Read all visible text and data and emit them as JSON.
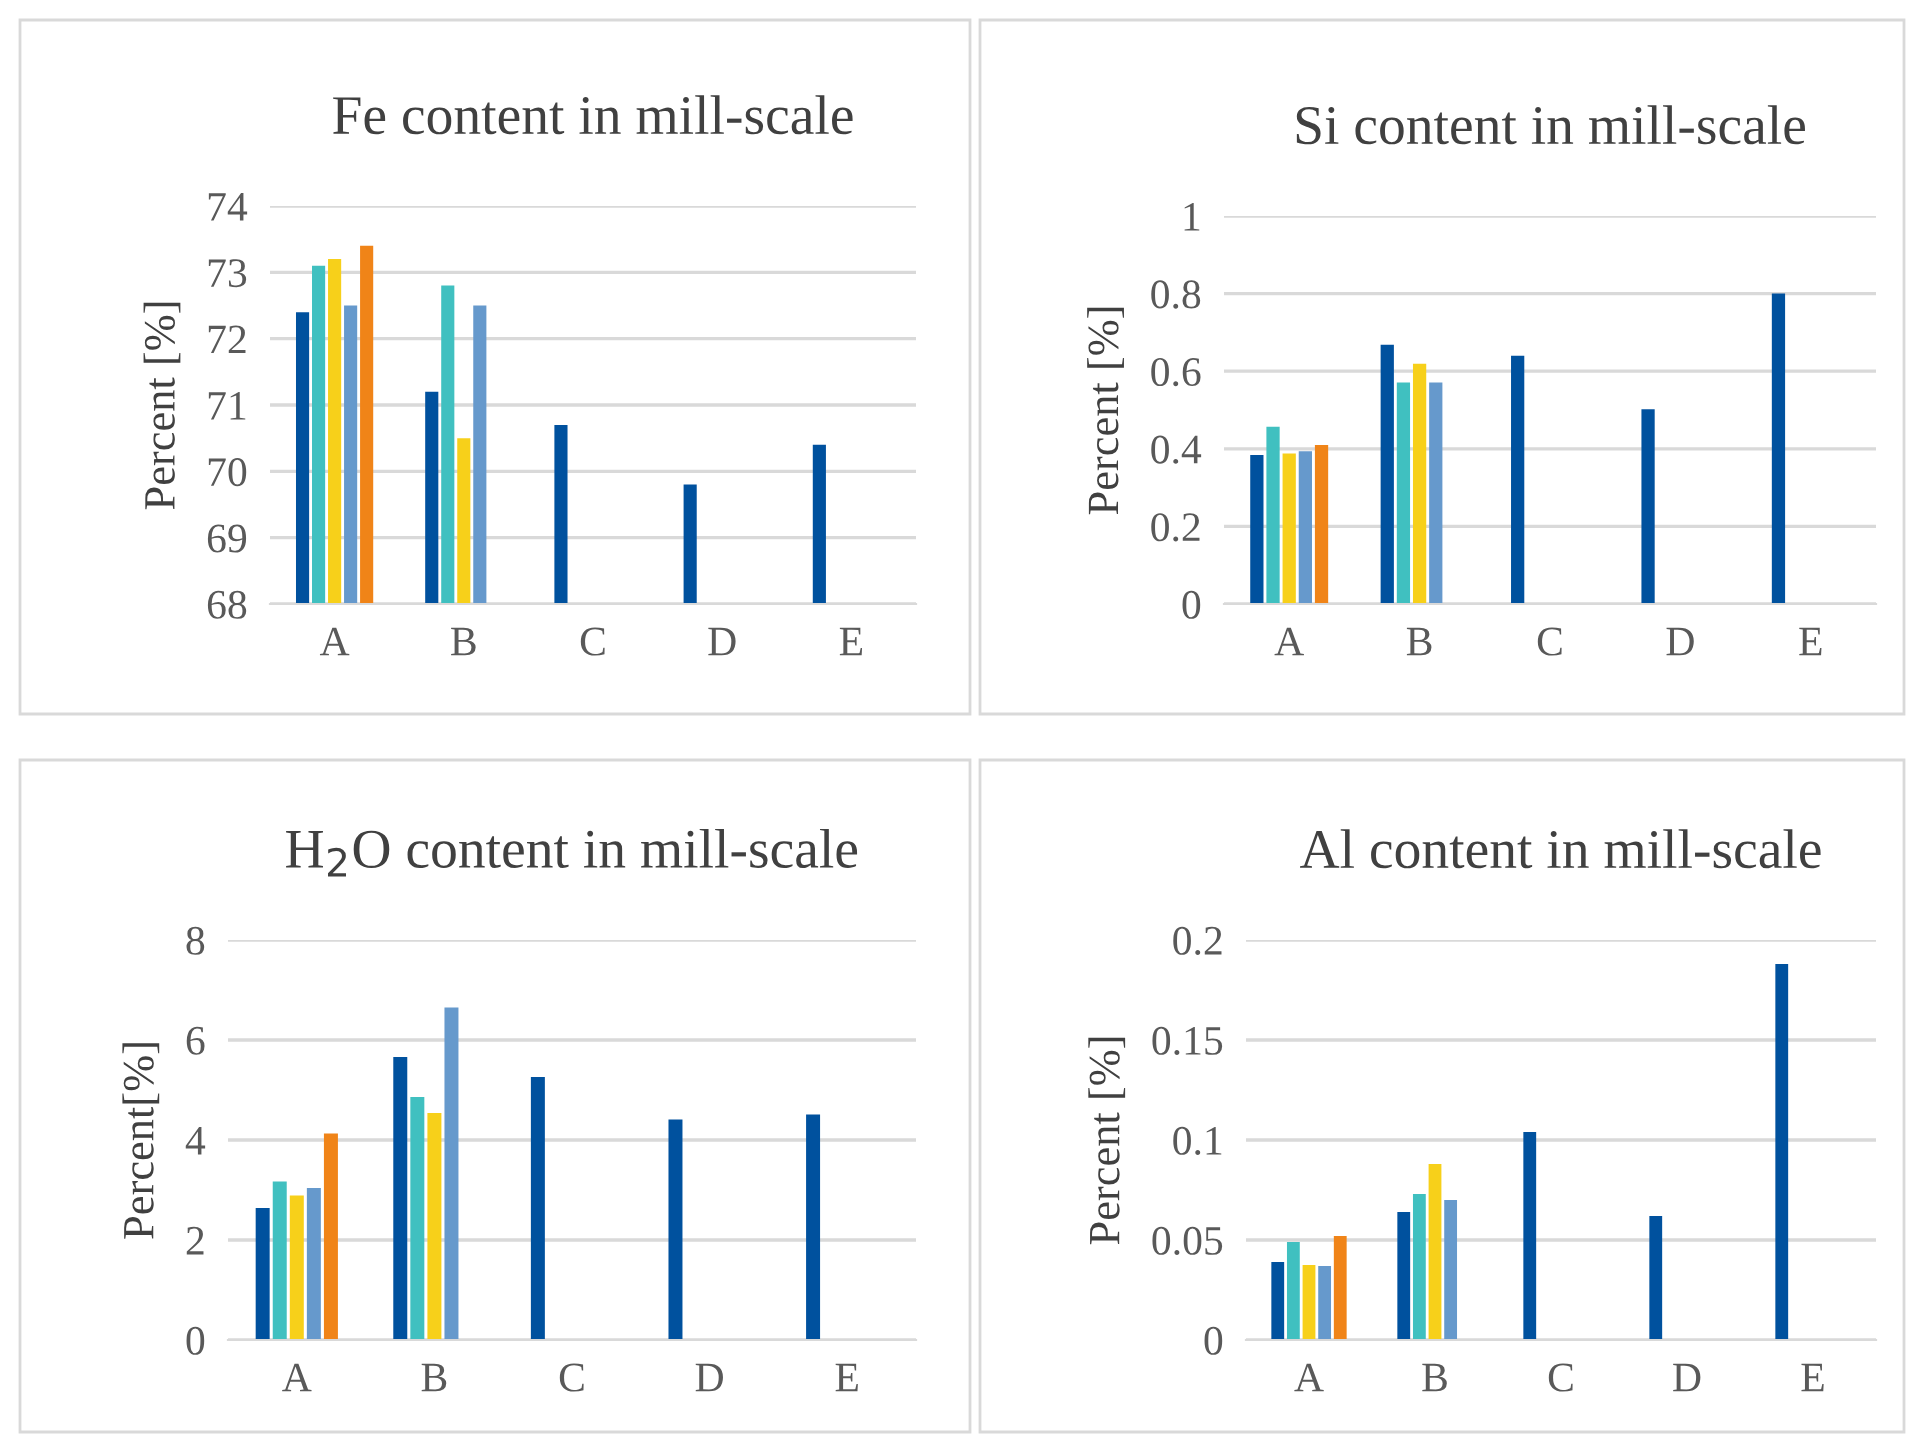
{
  "chart_data": [
    {
      "type": "bar",
      "title": "Fe content in mill-scale",
      "ylabel": "Percent [%]",
      "categories": [
        "A",
        "B",
        "C",
        "D",
        "E"
      ],
      "ylim": [
        68,
        74
      ],
      "yticks": [
        68,
        69,
        70,
        71,
        72,
        73,
        74
      ],
      "grid": "y",
      "legend": false,
      "series": [
        {
          "color": "#00519e",
          "values": [
            72.4,
            71.2,
            70.7,
            69.8,
            70.4
          ]
        },
        {
          "color": "#40c0c0",
          "values": [
            73.1,
            72.8,
            null,
            null,
            null
          ]
        },
        {
          "color": "#f7d01a",
          "values": [
            73.2,
            70.5,
            null,
            null,
            null
          ]
        },
        {
          "color": "#6699cc",
          "values": [
            72.5,
            72.5,
            null,
            null,
            null
          ]
        },
        {
          "color": "#f08418",
          "values": [
            73.4,
            null,
            null,
            null,
            null
          ]
        }
      ]
    },
    {
      "type": "bar",
      "title": "Si content in mill-scale",
      "ylabel": "Percent [%]",
      "categories": [
        "A",
        "B",
        "C",
        "D",
        "E"
      ],
      "ylim": [
        0,
        1
      ],
      "yticks": [
        0,
        0.2,
        0.4,
        0.6,
        0.8,
        1
      ],
      "grid": "y",
      "legend": false,
      "series": [
        {
          "color": "#00519e",
          "values": [
            0.384,
            0.668,
            0.64,
            0.502,
            0.8
          ]
        },
        {
          "color": "#40c0c0",
          "values": [
            0.457,
            0.571,
            null,
            null,
            null
          ]
        },
        {
          "color": "#f7d01a",
          "values": [
            0.388,
            0.619,
            null,
            null,
            null
          ]
        },
        {
          "color": "#6699cc",
          "values": [
            0.394,
            0.571,
            null,
            null,
            null
          ]
        },
        {
          "color": "#f08418",
          "values": [
            0.41,
            null,
            null,
            null,
            null
          ]
        }
      ]
    },
    {
      "type": "bar",
      "title": "H$_{2}$O content in mill-scale",
      "ylabel": "Percent[%]",
      "categories": [
        "A",
        "B",
        "C",
        "D",
        "E"
      ],
      "ylim": [
        0,
        8
      ],
      "yticks": [
        0,
        2,
        4,
        6,
        8
      ],
      "grid": "y",
      "legend": false,
      "series": [
        {
          "color": "#00519e",
          "values": [
            2.64,
            5.66,
            5.26,
            4.41,
            4.51
          ]
        },
        {
          "color": "#40c0c0",
          "values": [
            3.17,
            4.86,
            null,
            null,
            null
          ]
        },
        {
          "color": "#f7d01a",
          "values": [
            2.89,
            4.54,
            null,
            null,
            null
          ]
        },
        {
          "color": "#6699cc",
          "values": [
            3.04,
            6.65,
            null,
            null,
            null
          ]
        },
        {
          "color": "#f08418",
          "values": [
            4.13,
            null,
            null,
            null,
            null
          ]
        }
      ]
    },
    {
      "type": "bar",
      "title": "Al content in mill-scale",
      "ylabel": "Percent [%]",
      "categories": [
        "A",
        "B",
        "C",
        "D",
        "E"
      ],
      "ylim": [
        0,
        0.2
      ],
      "yticks": [
        0,
        0.05,
        0.1,
        0.15,
        0.2
      ],
      "grid": "y",
      "legend": false,
      "series": [
        {
          "color": "#00519e",
          "values": [
            0.039,
            0.064,
            0.104,
            0.062,
            0.188
          ]
        },
        {
          "color": "#40c0c0",
          "values": [
            0.049,
            0.073,
            null,
            null,
            null
          ]
        },
        {
          "color": "#f7d01a",
          "values": [
            0.0375,
            0.088,
            null,
            null,
            null
          ]
        },
        {
          "color": "#6699cc",
          "values": [
            0.037,
            0.07,
            null,
            null,
            null
          ]
        },
        {
          "color": "#f08418",
          "values": [
            0.052,
            null,
            null,
            null,
            null
          ]
        }
      ]
    }
  ]
}
